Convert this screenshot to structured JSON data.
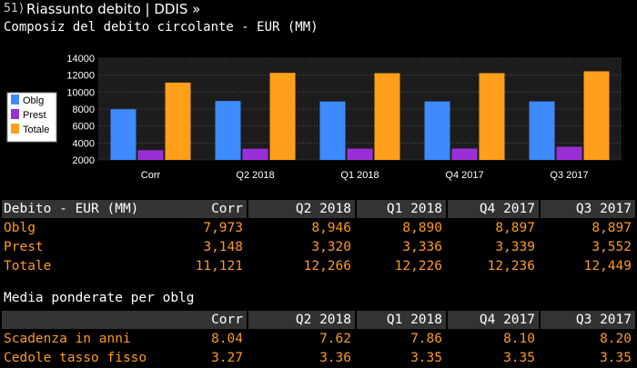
{
  "window": {
    "number": "51)",
    "title": "Riassunto debito | DDIS »"
  },
  "chart_title": "Composiz del debito circolante - EUR (MM)",
  "chart_data": {
    "type": "bar",
    "categories": [
      "Corr",
      "Q2 2018",
      "Q1 2018",
      "Q4 2017",
      "Q3 2017"
    ],
    "series": [
      {
        "name": "Oblg",
        "values": [
          7973,
          8946,
          8890,
          8897,
          8897
        ],
        "color": "#3d8bff"
      },
      {
        "name": "Prest",
        "values": [
          3148,
          3320,
          3336,
          3339,
          3552
        ],
        "color": "#9a2fd8"
      },
      {
        "name": "Totale",
        "values": [
          11121,
          12266,
          12226,
          12236,
          12449
        ],
        "color": "#ff9f1a"
      }
    ],
    "ylim": [
      2000,
      14000
    ],
    "yticks": [
      "2000",
      "4000",
      "6000",
      "8000",
      "10000",
      "12000",
      "14000"
    ],
    "legend": "left"
  },
  "debt_table": {
    "header": [
      "Debito - EUR (MM)",
      "Corr",
      "Q2 2018",
      "Q1 2018",
      "Q4 2017",
      "Q3 2017"
    ],
    "rows": [
      [
        "Oblg",
        "7,973",
        "8,946",
        "8,890",
        "8,897",
        "8,897"
      ],
      [
        "Prest",
        "3,148",
        "3,320",
        "3,336",
        "3,339",
        "3,552"
      ],
      [
        "Totale",
        "11,121",
        "12,266",
        "12,226",
        "12,236",
        "12,449"
      ]
    ]
  },
  "avg_section_title": "Media ponderate per oblg",
  "avg_table": {
    "header": [
      "",
      "Corr",
      "Q2 2018",
      "Q1 2018",
      "Q4 2017",
      "Q3 2017"
    ],
    "rows": [
      [
        "Scadenza in anni",
        "8.04",
        "7.62",
        "7.86",
        "8.10",
        "8.20"
      ],
      [
        "Cedole tasso fisso",
        "3.27",
        "3.36",
        "3.35",
        "3.35",
        "3.35"
      ]
    ]
  }
}
